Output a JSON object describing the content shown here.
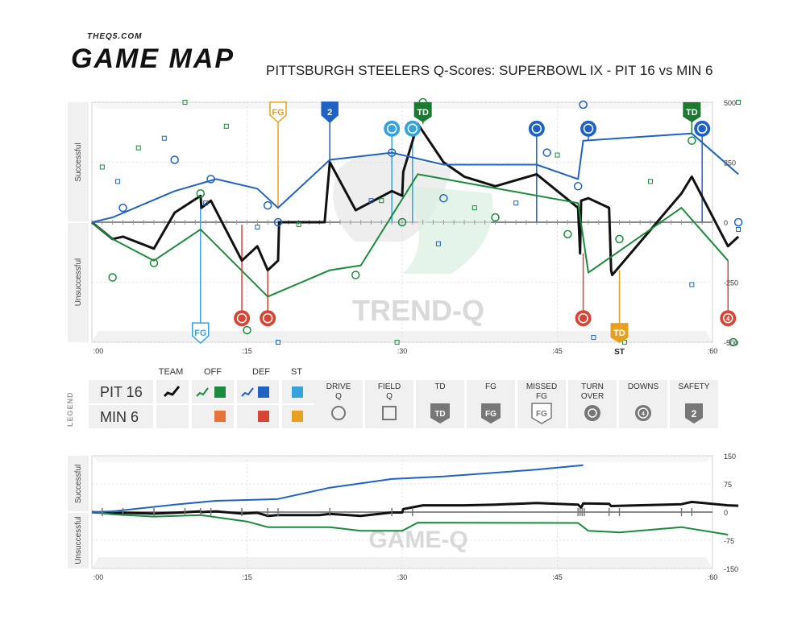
{
  "brand": {
    "site": "THEQ5.COM",
    "product": "GAME MAP"
  },
  "title": "PITTSBURGH STEELERS Q-Scores: SUPERBOWL IX - PIT 16 vs MIN 6",
  "colors": {
    "team": "#111111",
    "offense": "#1a8a3c",
    "defense": "#1f62c4",
    "special_teams": "#36a3dd",
    "opp_offense": "#e8733a",
    "opp_defense": "#d64535",
    "opp_special_teams": "#e8a020",
    "td": "#1a7a30",
    "fg": "#e8a020",
    "turnover": "#d64535",
    "axis_grey": "#777777"
  },
  "chart_data": [
    {
      "id": "trend-q",
      "type": "line",
      "watermark": "TREND-Q",
      "ylabel_top": "Successful",
      "ylabel_bottom": "Unsuccessful",
      "ylim": [
        -500,
        500
      ],
      "yticks": [
        500,
        250,
        0,
        -250,
        -500
      ],
      "xlim": [
        0,
        60
      ],
      "xticks": [
        ":00",
        ":15",
        ":30",
        ":45",
        ":60"
      ],
      "grid": true,
      "series": [
        {
          "role": "team",
          "values": [
            [
              0,
              0
            ],
            [
              2,
              -70
            ],
            [
              3,
              -60
            ],
            [
              6,
              -110
            ],
            [
              8,
              40
            ],
            [
              10.5,
              110
            ],
            [
              10.6,
              60
            ],
            [
              11.5,
              90
            ],
            [
              14.5,
              -160
            ],
            [
              16,
              -100
            ],
            [
              17,
              -200
            ],
            [
              18,
              -160
            ],
            [
              18.1,
              0
            ],
            [
              22,
              0
            ],
            [
              22.5,
              0
            ],
            [
              23,
              250
            ],
            [
              25.5,
              50
            ],
            [
              29,
              130
            ],
            [
              30,
              110
            ],
            [
              30.1,
              210
            ],
            [
              31.5,
              410
            ],
            [
              34,
              250
            ],
            [
              36,
              190
            ],
            [
              39,
              150
            ],
            [
              43,
              200
            ],
            [
              47,
              60
            ],
            [
              47.2,
              -130
            ],
            [
              47.3,
              90
            ],
            [
              48,
              100
            ],
            [
              50,
              60
            ],
            [
              50.2,
              -200
            ],
            [
              50.3,
              -220
            ],
            [
              57,
              120
            ],
            [
              58,
              190
            ],
            [
              61.5,
              -100
            ],
            [
              62.5,
              -60
            ]
          ]
        },
        {
          "role": "offense",
          "values": [
            [
              0,
              0
            ],
            [
              2,
              -70
            ],
            [
              6,
              -160
            ],
            [
              10.5,
              -30
            ],
            [
              17,
              -310
            ],
            [
              23,
              -200
            ],
            [
              26,
              -180
            ],
            [
              31.5,
              200
            ],
            [
              47,
              80
            ],
            [
              48,
              -210
            ],
            [
              57,
              60
            ],
            [
              61.5,
              -160
            ]
          ]
        },
        {
          "role": "defense",
          "values": [
            [
              0,
              0
            ],
            [
              2,
              20
            ],
            [
              8,
              130
            ],
            [
              12,
              180
            ],
            [
              16,
              140
            ],
            [
              18,
              60
            ],
            [
              23,
              260
            ],
            [
              29,
              290
            ],
            [
              34,
              240
            ],
            [
              43,
              240
            ],
            [
              47,
              180
            ],
            [
              47.5,
              340
            ],
            [
              58,
              370
            ],
            [
              62.5,
              200
            ]
          ]
        }
      ],
      "drive_q": [
        {
          "x": 3,
          "y": 60,
          "side": "def"
        },
        {
          "x": 8,
          "y": 260,
          "side": "def"
        },
        {
          "x": 11.5,
          "y": 180,
          "side": "def"
        },
        {
          "x": 17,
          "y": 70,
          "side": "def"
        },
        {
          "x": 29,
          "y": 290,
          "side": "def"
        },
        {
          "x": 34,
          "y": 100,
          "side": "def"
        },
        {
          "x": 44,
          "y": 290,
          "side": "def"
        },
        {
          "x": 47,
          "y": 150,
          "side": "def"
        },
        {
          "x": 47.5,
          "y": 490,
          "side": "def"
        },
        {
          "x": 62.5,
          "y": 0,
          "side": "def"
        },
        {
          "x": 25.5,
          "y": -220,
          "side": "off"
        },
        {
          "x": 2,
          "y": -230,
          "side": "off"
        },
        {
          "x": 6,
          "y": -170,
          "side": "off"
        },
        {
          "x": 10.5,
          "y": 120,
          "side": "off"
        },
        {
          "x": 30,
          "y": 0,
          "side": "off"
        },
        {
          "x": 39,
          "y": 20,
          "side": "off"
        },
        {
          "x": 46,
          "y": -50,
          "side": "off"
        },
        {
          "x": 51,
          "y": -70,
          "side": "off"
        },
        {
          "x": 58,
          "y": 340,
          "side": "off"
        },
        {
          "x": 15,
          "y": -450,
          "side": "off"
        },
        {
          "x": 32,
          "y": 500,
          "side": "off"
        },
        {
          "x": 62,
          "y": -500,
          "side": "off"
        },
        {
          "x": 18,
          "y": 0,
          "side": "def"
        }
      ],
      "field_q": [
        {
          "x": 1,
          "y": 230,
          "side": "off"
        },
        {
          "x": 4.5,
          "y": 310,
          "side": "off"
        },
        {
          "x": 9,
          "y": 500,
          "side": "off"
        },
        {
          "x": 13,
          "y": 400,
          "side": "off"
        },
        {
          "x": 20,
          "y": -10,
          "side": "off"
        },
        {
          "x": 28,
          "y": 90,
          "side": "off"
        },
        {
          "x": 37,
          "y": 60,
          "side": "off"
        },
        {
          "x": 45,
          "y": 280,
          "side": "off"
        },
        {
          "x": 54,
          "y": 170,
          "side": "off"
        },
        {
          "x": 62.5,
          "y": 500,
          "side": "off"
        },
        {
          "x": 29.5,
          "y": -500,
          "side": "off"
        },
        {
          "x": 51.5,
          "y": -500,
          "side": "off"
        },
        {
          "x": 2.5,
          "y": 170,
          "side": "def"
        },
        {
          "x": 7,
          "y": 350,
          "side": "def"
        },
        {
          "x": 11,
          "y": 80,
          "side": "def"
        },
        {
          "x": 16,
          "y": -20,
          "side": "def"
        },
        {
          "x": 27,
          "y": 90,
          "side": "def"
        },
        {
          "x": 33.5,
          "y": -90,
          "side": "def"
        },
        {
          "x": 41,
          "y": 80,
          "side": "def"
        },
        {
          "x": 48.5,
          "y": -480,
          "side": "def"
        },
        {
          "x": 58,
          "y": -260,
          "side": "def"
        },
        {
          "x": 62.5,
          "y": -30,
          "side": "def"
        },
        {
          "x": 18,
          "y": -500,
          "side": "def"
        }
      ],
      "markers": [
        {
          "type": "FG",
          "x": 10.5,
          "y": -460,
          "label": "FG",
          "color": "#36a3dd",
          "anchor": 110,
          "shape": "shield"
        },
        {
          "type": "FG",
          "x": 18,
          "y": 460,
          "label": "FG",
          "color": "#e8a020",
          "anchor": 60,
          "shape": "shield"
        },
        {
          "type": "SAFETY",
          "x": 23,
          "y": 460,
          "label": "2",
          "color": "#1f62c4",
          "anchor": 250,
          "shape": "shield"
        },
        {
          "type": "TD",
          "x": 32,
          "y": 460,
          "label": "TD",
          "color": "#1a7a30",
          "anchor": 410,
          "shape": "flag"
        },
        {
          "type": "TD",
          "x": 58,
          "y": 460,
          "label": "TD",
          "color": "#1a7a30",
          "anchor": 370,
          "shape": "flag"
        },
        {
          "type": "TD",
          "x": 51,
          "y": -460,
          "label": "TD",
          "color": "#e8a020",
          "anchor": -200,
          "shape": "flag"
        },
        {
          "type": "TURNOVER",
          "x": 29,
          "y": 390,
          "label": "",
          "color": "#36a3dd",
          "anchor": 0,
          "shape": "circle"
        },
        {
          "type": "TURNOVER",
          "x": 31,
          "y": 390,
          "label": "",
          "color": "#36a3dd",
          "anchor": 0,
          "shape": "circle"
        },
        {
          "type": "TURNOVER",
          "x": 43,
          "y": 390,
          "label": "",
          "color": "#1f62c4",
          "anchor": 0,
          "shape": "circle"
        },
        {
          "type": "TURNOVER",
          "x": 48,
          "y": 390,
          "label": "",
          "color": "#1f62c4",
          "anchor": 340,
          "shape": "circle"
        },
        {
          "type": "TURNOVER",
          "x": 59,
          "y": 390,
          "label": "",
          "color": "#1f62c4",
          "anchor": 0,
          "shape": "circle"
        },
        {
          "type": "TURNOVER",
          "x": 14.5,
          "y": -400,
          "label": "",
          "color": "#d64535",
          "anchor": -10,
          "shape": "circle"
        },
        {
          "type": "TURNOVER",
          "x": 17,
          "y": -400,
          "label": "",
          "color": "#d64535",
          "anchor": -200,
          "shape": "circle"
        },
        {
          "type": "TURNOVER",
          "x": 47.5,
          "y": -400,
          "label": "",
          "color": "#d64535",
          "anchor": -130,
          "shape": "circle"
        },
        {
          "type": "DOWNS",
          "x": 61.5,
          "y": -400,
          "label": "4",
          "color": "#d64535",
          "anchor": -160,
          "shape": "circle"
        }
      ],
      "st_label": "ST"
    },
    {
      "id": "game-q",
      "type": "line",
      "watermark": "GAME-Q",
      "ylabel_top": "Successful",
      "ylabel_bottom": "Unsuccessful",
      "ylim": [
        -150,
        150
      ],
      "yticks": [
        150,
        75,
        0,
        -75,
        -150
      ],
      "xlim": [
        0,
        60
      ],
      "xticks": [
        ":00",
        ":15",
        ":30",
        ":45",
        ":60"
      ],
      "grid": true,
      "series": [
        {
          "role": "team",
          "values": [
            [
              0,
              0
            ],
            [
              2,
              -4
            ],
            [
              3,
              -2
            ],
            [
              6,
              -4
            ],
            [
              8,
              -2
            ],
            [
              10.5,
              2
            ],
            [
              10.6,
              0
            ],
            [
              12,
              2
            ],
            [
              14.5,
              -4
            ],
            [
              16,
              -2
            ],
            [
              17,
              -10
            ],
            [
              18,
              -8
            ],
            [
              18.1,
              -8
            ],
            [
              22,
              -8
            ],
            [
              23,
              -5
            ],
            [
              26,
              -10
            ],
            [
              29,
              -1
            ],
            [
              30,
              -1
            ],
            [
              30.1,
              8
            ],
            [
              32,
              18
            ],
            [
              36,
              18
            ],
            [
              39,
              20
            ],
            [
              43,
              24
            ],
            [
              47,
              20
            ],
            [
              47.3,
              12
            ],
            [
              47.5,
              23
            ],
            [
              50,
              22
            ],
            [
              50.2,
              16
            ],
            [
              57,
              21
            ],
            [
              58,
              27
            ],
            [
              61.5,
              18
            ],
            [
              62.5,
              17
            ]
          ]
        },
        {
          "role": "offense",
          "values": [
            [
              0,
              0
            ],
            [
              2,
              -6
            ],
            [
              6,
              -12
            ],
            [
              10.5,
              -8
            ],
            [
              15,
              -25
            ],
            [
              17,
              -40
            ],
            [
              23,
              -40
            ],
            [
              26,
              -50
            ],
            [
              30,
              -50
            ],
            [
              31.5,
              -28
            ],
            [
              47,
              -29
            ],
            [
              48,
              -50
            ],
            [
              51,
              -54
            ],
            [
              57,
              -40
            ],
            [
              61.5,
              -60
            ]
          ]
        },
        {
          "role": "defense",
          "values": [
            [
              0,
              0
            ],
            [
              2,
              2
            ],
            [
              8,
              20
            ],
            [
              12,
              30
            ],
            [
              16,
              33
            ],
            [
              18,
              35
            ],
            [
              23,
              65
            ],
            [
              29,
              88
            ],
            [
              34,
              95
            ],
            [
              43,
              113
            ],
            [
              47.5,
              125
            ]
          ]
        }
      ],
      "event_ticks": [
        1,
        3,
        6,
        9,
        10.5,
        11.5,
        14.5,
        17,
        18,
        23,
        29,
        31,
        47,
        47.2,
        47.4,
        47.6,
        50,
        51,
        57,
        58
      ]
    }
  ],
  "legend": {
    "side_label": "LEGEND",
    "headers": {
      "team": "TEAM",
      "off": "OFF",
      "def": "DEF",
      "st": "ST"
    },
    "rows": [
      {
        "name": "PIT 16",
        "team": true,
        "off": true,
        "def": true,
        "st": true
      },
      {
        "name": "MIN 6",
        "team": false,
        "off": true,
        "def": true,
        "st": true
      }
    ],
    "items": [
      {
        "line1": "DRIVE",
        "line2": "Q",
        "icon": "drive-q-icon"
      },
      {
        "line1": "FIELD",
        "line2": "Q",
        "icon": "field-q-icon"
      },
      {
        "line1": "TD",
        "line2": "",
        "icon": "td-icon"
      },
      {
        "line1": "FG",
        "line2": "",
        "icon": "fg-icon"
      },
      {
        "line1": "MISSED",
        "line2": "FG",
        "icon": "missed-fg-icon"
      },
      {
        "line1": "TURN",
        "line2": "OVER",
        "icon": "turnover-icon"
      },
      {
        "line1": "DOWNS",
        "line2": "",
        "icon": "downs-icon"
      },
      {
        "line1": "SAFETY",
        "line2": "",
        "icon": "safety-icon"
      }
    ]
  }
}
